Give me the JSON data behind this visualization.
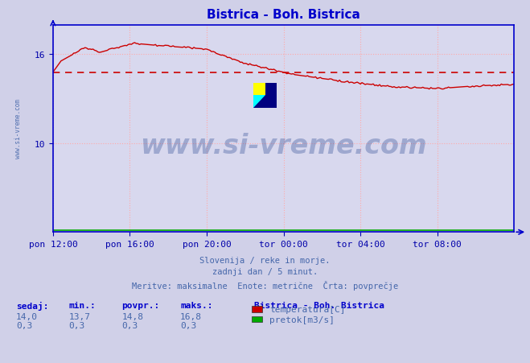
{
  "title": "Bistrica - Boh. Bistrica",
  "title_color": "#0000cc",
  "bg_color": "#d0d0e8",
  "plot_bg_color": "#d8d8ee",
  "grid_color": "#ffaaaa",
  "axis_color": "#0000cc",
  "tick_color": "#0000aa",
  "temp_line_color": "#cc0000",
  "temp_avg_line_color": "#cc0000",
  "pretok_line_color": "#00aa00",
  "watermark_color": "#1a3a8a",
  "x_tick_labels": [
    "pon 12:00",
    "pon 16:00",
    "pon 20:00",
    "tor 00:00",
    "tor 04:00",
    "tor 08:00"
  ],
  "x_tick_positions": [
    0,
    48,
    96,
    144,
    192,
    240
  ],
  "y_ticks": [
    10,
    16
  ],
  "ylim": [
    4.0,
    18.0
  ],
  "xlim": [
    0,
    288
  ],
  "avg_temp": 14.8,
  "footer_lines": [
    "Slovenija / reke in morje.",
    "zadnji dan / 5 minut.",
    "Meritve: maksimalne  Enote: metrične  Črta: povprečje"
  ],
  "stats": {
    "sedaj": {
      "temp": "14,0",
      "pretok": "0,3"
    },
    "min": {
      "temp": "13,7",
      "pretok": "0,3"
    },
    "povpr": {
      "temp": "14,8",
      "pretok": "0,3"
    },
    "maks": {
      "temp": "16,8",
      "pretok": "0,3"
    }
  },
  "legend_title": "Bistrica - Boh. Bistrica",
  "legend_items": [
    {
      "label": "temperatura[C]",
      "color": "#cc0000"
    },
    {
      "label": "pretok[m3/s]",
      "color": "#00aa00"
    }
  ]
}
